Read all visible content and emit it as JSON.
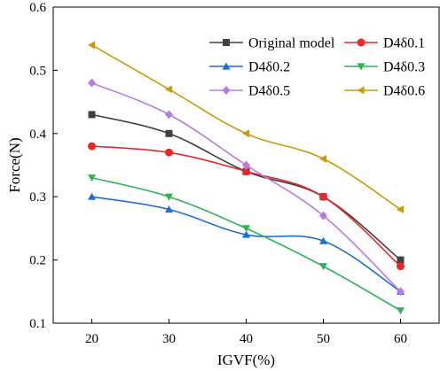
{
  "chart_data": {
    "type": "line",
    "xlabel": "IGVF(%)",
    "ylabel": "Force(N)",
    "xlim": [
      15,
      65
    ],
    "ylim": [
      0.1,
      0.6
    ],
    "x_ticks": [
      20,
      30,
      40,
      50,
      60
    ],
    "y_ticks": [
      0.1,
      0.2,
      0.3,
      0.4,
      0.5,
      0.6
    ],
    "grid": false,
    "legend_position": "top-right",
    "x": [
      20,
      30,
      40,
      50,
      60
    ],
    "series": [
      {
        "name": "Original model",
        "color": "#404040",
        "marker": "square",
        "values": [
          0.43,
          0.4,
          0.34,
          0.3,
          0.2
        ]
      },
      {
        "name": "D4δ0.1",
        "color": "#e8282b",
        "marker": "circle",
        "values": [
          0.38,
          0.37,
          0.34,
          0.3,
          0.19
        ]
      },
      {
        "name": "D4δ0.2",
        "color": "#1a6fd6",
        "marker": "triangle-up",
        "values": [
          0.3,
          0.28,
          0.24,
          0.23,
          0.15
        ]
      },
      {
        "name": "D4δ0.3",
        "color": "#2fb455",
        "marker": "triangle-down",
        "values": [
          0.33,
          0.3,
          0.25,
          0.19,
          0.12
        ]
      },
      {
        "name": "D4δ0.5",
        "color": "#b77be6",
        "marker": "diamond",
        "values": [
          0.48,
          0.43,
          0.35,
          0.27,
          0.15
        ]
      },
      {
        "name": "D4δ0.6",
        "color": "#c99a0c",
        "marker": "triangle-left",
        "values": [
          0.54,
          0.47,
          0.4,
          0.36,
          0.28
        ]
      }
    ]
  }
}
